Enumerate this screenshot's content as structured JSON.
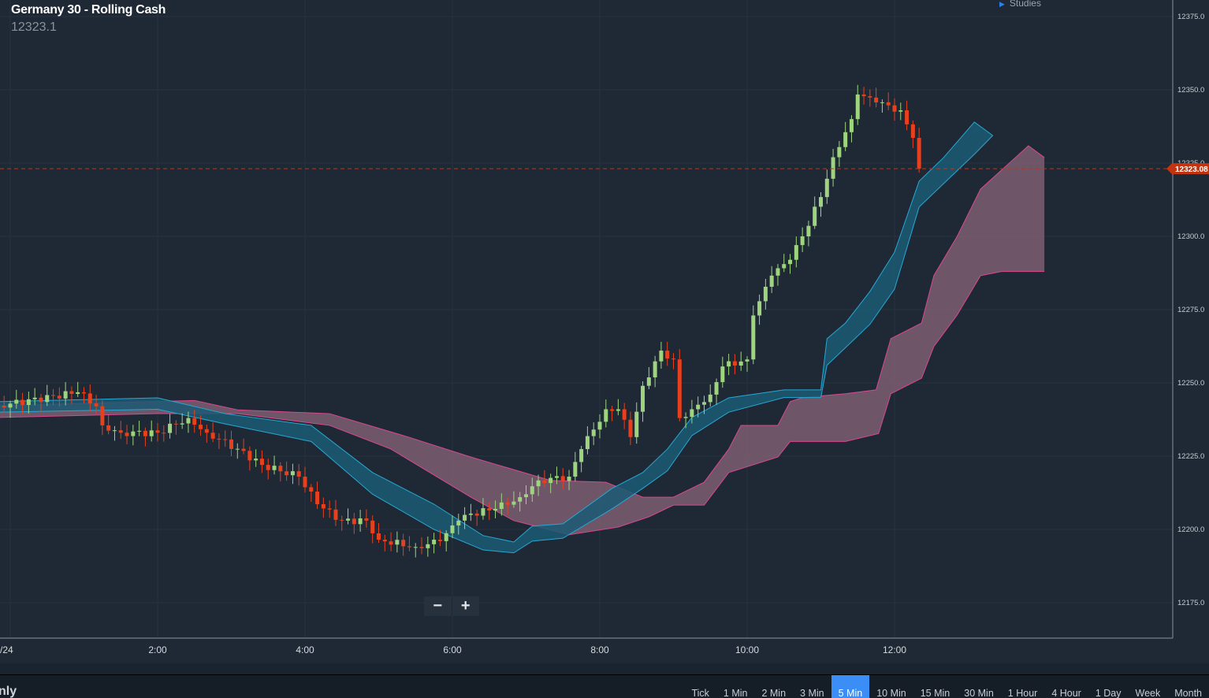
{
  "header": {
    "title": "Germany 30 - Rolling Cash",
    "last_price": "12323.1",
    "studies_label": "Studies"
  },
  "zoom": {
    "minus": "−",
    "plus": "+"
  },
  "bottom": {
    "left_label": "nly",
    "timeframes": [
      "Tick",
      "1 Min",
      "2 Min",
      "3 Min",
      "5 Min",
      "10 Min",
      "15 Min",
      "30 Min",
      "1 Hour",
      "4 Hour",
      "1 Day",
      "Week",
      "Month"
    ],
    "active_timeframe": "5 Min"
  },
  "chart_data": {
    "type": "candlestick",
    "interval": "5 Min",
    "ylim": [
      12160,
      12380
    ],
    "y_ticks": [
      "12175.0",
      "12200.0",
      "12225.0",
      "12250.0",
      "12275.0",
      "12300.0",
      "12325.0",
      "12350.0",
      "12375.0"
    ],
    "x_ticks": [
      {
        "label": "/24",
        "time": "0:00"
      },
      {
        "label": "2:00",
        "time": "2:00"
      },
      {
        "label": "4:00",
        "time": "4:00"
      },
      {
        "label": "6:00",
        "time": "6:00"
      },
      {
        "label": "8:00",
        "time": "8:00"
      },
      {
        "label": "10:00",
        "time": "10:00"
      },
      {
        "label": "12:00",
        "time": "12:00"
      }
    ],
    "current_price": 12323.08,
    "current_price_label": "12323.08",
    "colors": {
      "up": "#9fd47f",
      "down": "#e8401c",
      "price_line": "#b23a22",
      "tenkan_kijun_fill": "#1b5b74",
      "tenkan_kijun_line": "#27a8d4",
      "cloud_fill": "#8a6478",
      "cloud_line": "#d9488f"
    },
    "closes": [
      [
        "23:50",
        12242.2
      ],
      [
        "0:55",
        12246.8
      ],
      [
        "1:10",
        12242.0
      ],
      [
        "1:15",
        12235.5
      ],
      [
        "1:30",
        12233.0
      ],
      [
        "2:00",
        12233.0
      ],
      [
        "2:25",
        12238.0
      ],
      [
        "2:40",
        12233.0
      ],
      [
        "3:05",
        12227.5
      ],
      [
        "3:25",
        12222.0
      ],
      [
        "3:55",
        12218.0
      ],
      [
        "4:10",
        12208.6
      ],
      [
        "4:30",
        12203.0
      ],
      [
        "4:50",
        12203.0
      ],
      [
        "5:00",
        12196.5
      ],
      [
        "5:30",
        12194.0
      ],
      [
        "5:50",
        12196.0
      ],
      [
        "6:05",
        12203.0
      ],
      [
        "6:15",
        12205.4
      ],
      [
        "6:35",
        12207.0
      ],
      [
        "6:55",
        12211.0
      ],
      [
        "7:10",
        12216.7
      ],
      [
        "7:35",
        12218.0
      ],
      [
        "7:45",
        12227.4
      ],
      [
        "8:05",
        12241.0
      ],
      [
        "8:15",
        12241.0
      ],
      [
        "8:25",
        12231.5
      ],
      [
        "8:35",
        12249.0
      ],
      [
        "8:50",
        12261.0
      ],
      [
        "9:00",
        12258.0
      ],
      [
        "9:05",
        12238.0
      ],
      [
        "9:15",
        12241.0
      ],
      [
        "9:30",
        12246.0
      ],
      [
        "9:40",
        12255.6
      ],
      [
        "10:00",
        12258.0
      ],
      [
        "10:05",
        12273.0
      ],
      [
        "10:20",
        12286.6
      ],
      [
        "10:35",
        12292.0
      ],
      [
        "10:45",
        12300.0
      ],
      [
        "11:00",
        12313.4
      ],
      [
        "11:10",
        12327.0
      ],
      [
        "11:25",
        12340.0
      ],
      [
        "11:30",
        12348.4
      ],
      [
        "11:45",
        12345.7
      ],
      [
        "12:05",
        12343.0
      ],
      [
        "12:15",
        12333.6
      ],
      [
        "12:20",
        12323.1
      ]
    ],
    "tenkan_kijun_upper": [
      [
        "23:50",
        12243.6
      ],
      [
        "2:00",
        12244.9
      ],
      [
        "2:55",
        12239.5
      ],
      [
        "4:05",
        12235.5
      ],
      [
        "4:55",
        12219.4
      ],
      [
        "5:45",
        12208.6
      ],
      [
        "6:25",
        12197.9
      ],
      [
        "6:50",
        12195.7
      ],
      [
        "7:05",
        12201.1
      ],
      [
        "7:30",
        12201.9
      ],
      [
        "8:10",
        12214.0
      ],
      [
        "8:35",
        12219.4
      ],
      [
        "8:55",
        12227.4
      ],
      [
        "9:15",
        12238.2
      ],
      [
        "9:45",
        12244.9
      ],
      [
        "10:30",
        12247.6
      ],
      [
        "11:00",
        12247.6
      ],
      [
        "11:05",
        12265.1
      ],
      [
        "11:20",
        12270.4
      ],
      [
        "11:40",
        12281.2
      ],
      [
        "12:00",
        12294.6
      ],
      [
        "12:20",
        12318.8
      ],
      [
        "12:40",
        12326.9
      ],
      [
        "13:05",
        12339.0
      ],
      [
        "13:20",
        12334.4
      ]
    ],
    "tenkan_kijun_lower": [
      [
        "23:50",
        12240.0
      ],
      [
        "2:00",
        12241.0
      ],
      [
        "2:55",
        12236.0
      ],
      [
        "4:05",
        12230.0
      ],
      [
        "4:55",
        12212.0
      ],
      [
        "5:45",
        12200.0
      ],
      [
        "6:25",
        12193.0
      ],
      [
        "6:50",
        12192.0
      ],
      [
        "7:05",
        12196.0
      ],
      [
        "7:30",
        12197.0
      ],
      [
        "8:10",
        12207.0
      ],
      [
        "8:35",
        12214.0
      ],
      [
        "8:55",
        12220.0
      ],
      [
        "9:15",
        12232.0
      ],
      [
        "9:45",
        12240.0
      ],
      [
        "10:30",
        12245.0
      ],
      [
        "11:00",
        12245.0
      ],
      [
        "11:05",
        12256.0
      ],
      [
        "11:20",
        12262.0
      ],
      [
        "11:40",
        12270.0
      ],
      [
        "12:00",
        12282.0
      ],
      [
        "12:20",
        12310.0
      ],
      [
        "12:40",
        12318.0
      ],
      [
        "13:05",
        12328.0
      ],
      [
        "13:20",
        12334.4
      ]
    ],
    "span_a": [
      [
        "23:50",
        12242.2
      ],
      [
        "2:30",
        12244.0
      ],
      [
        "3:05",
        12240.8
      ],
      [
        "4:20",
        12239.5
      ],
      [
        "5:25",
        12231.4
      ],
      [
        "6:15",
        12224.7
      ],
      [
        "7:20",
        12216.7
      ],
      [
        "8:05",
        12216.1
      ],
      [
        "8:35",
        12211.0
      ],
      [
        "9:00",
        12211.0
      ],
      [
        "9:25",
        12216.1
      ],
      [
        "9:45",
        12227.4
      ],
      [
        "9:55",
        12235.5
      ],
      [
        "10:25",
        12235.5
      ],
      [
        "10:35",
        12243.6
      ],
      [
        "10:45",
        12245.0
      ],
      [
        "11:20",
        12246.3
      ],
      [
        "11:45",
        12247.6
      ],
      [
        "11:57",
        12265.1
      ],
      [
        "12:22",
        12270.4
      ],
      [
        "12:32",
        12286.6
      ],
      [
        "12:51",
        12300.0
      ],
      [
        "13:10",
        12316.1
      ],
      [
        "13:49",
        12330.9
      ],
      [
        "14:02",
        12326.9
      ]
    ],
    "span_b": [
      [
        "23:50",
        12238.2
      ],
      [
        "2:00",
        12239.5
      ],
      [
        "3:05",
        12239.5
      ],
      [
        "4:20",
        12235.5
      ],
      [
        "5:10",
        12227.4
      ],
      [
        "6:15",
        12211.0
      ],
      [
        "6:50",
        12203.0
      ],
      [
        "7:35",
        12198.2
      ],
      [
        "8:15",
        12200.8
      ],
      [
        "8:40",
        12204.3
      ],
      [
        "9:00",
        12208.3
      ],
      [
        "9:25",
        12208.3
      ],
      [
        "9:45",
        12219.4
      ],
      [
        "10:25",
        12224.7
      ],
      [
        "10:35",
        12230.0
      ],
      [
        "11:20",
        12230.0
      ],
      [
        "11:47",
        12232.7
      ],
      [
        "11:57",
        12246.3
      ],
      [
        "12:22",
        12251.6
      ],
      [
        "12:32",
        12262.4
      ],
      [
        "12:51",
        12273.2
      ],
      [
        "13:10",
        12286.6
      ],
      [
        "13:27",
        12288.0
      ],
      [
        "14:02",
        12288.0
      ]
    ]
  }
}
